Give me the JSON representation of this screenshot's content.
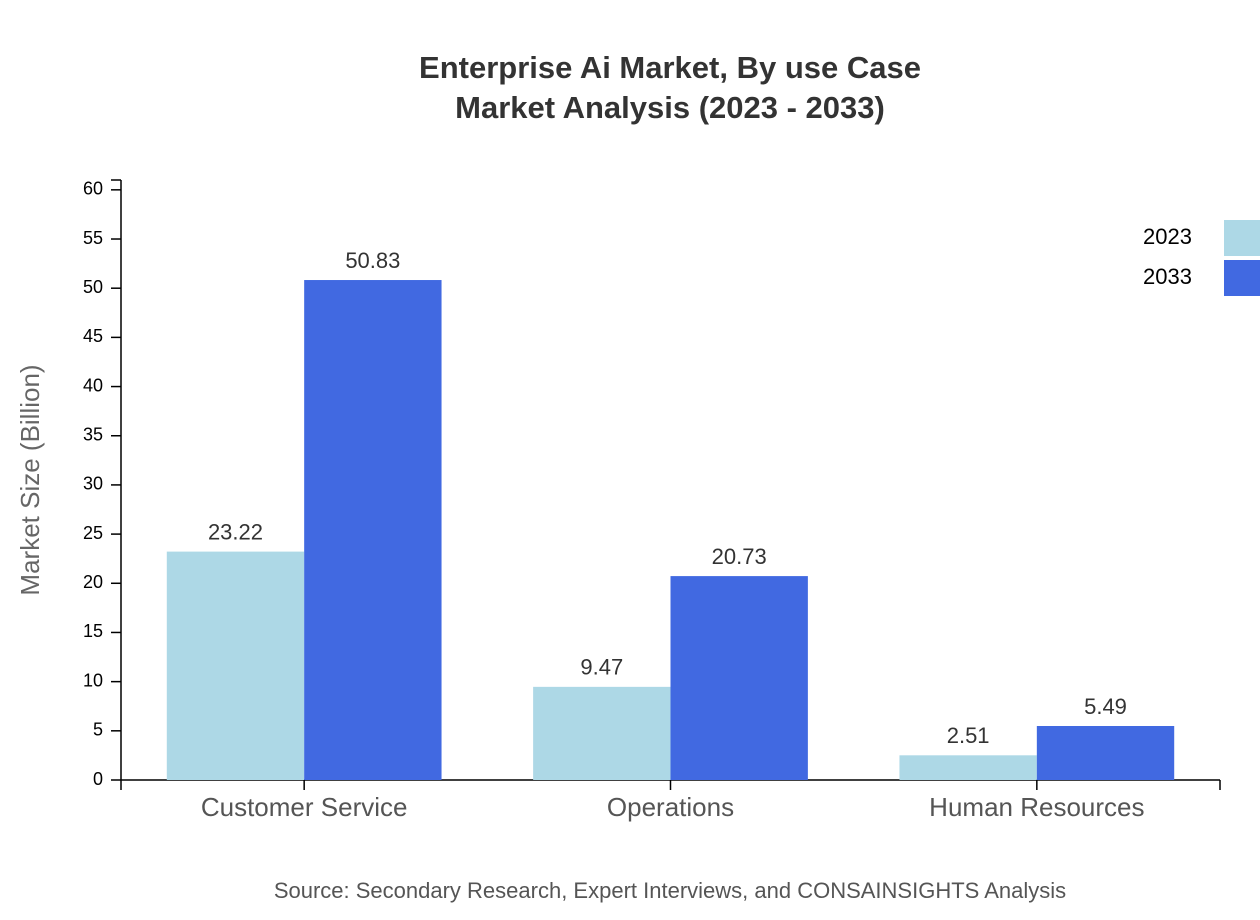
{
  "chart_data": {
    "type": "bar",
    "title": "Enterprise Ai Market, By use Case",
    "subtitle": "Market Analysis (2023 - 2033)",
    "y_label": "Market Size (Billion)",
    "source": "Source: Secondary Research, Expert Interviews, and CONSAINSIGHTS Analysis",
    "categories": [
      "Customer Service",
      "Operations",
      "Human Resources"
    ],
    "series": [
      {
        "name": "2023",
        "color": "#add8e6",
        "values": [
          23.22,
          9.47,
          2.51
        ]
      },
      {
        "name": "2033",
        "color": "#4169e1",
        "values": [
          50.83,
          20.73,
          5.49
        ]
      }
    ],
    "ylim": [
      0,
      61
    ],
    "yticks": [
      0,
      5,
      10,
      15,
      20,
      25,
      30,
      35,
      40,
      45,
      50,
      55,
      60
    ],
    "legend": "top-right"
  }
}
